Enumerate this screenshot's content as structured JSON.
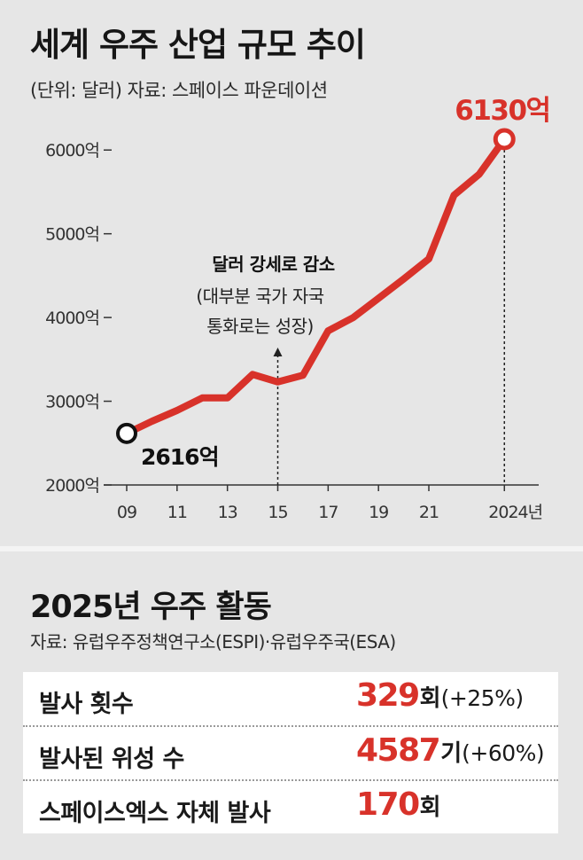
{
  "header": {
    "title": "세계 우주 산업 규모 추이",
    "subtitle": "(단위: 달러) 자료: 스페이스 파운데이션"
  },
  "chart_data": {
    "type": "line",
    "x": [
      2009,
      2010,
      2011,
      2012,
      2013,
      2014,
      2015,
      2016,
      2017,
      2018,
      2019,
      2020,
      2021,
      2022,
      2023,
      2024
    ],
    "values": [
      2616,
      2760,
      2890,
      3040,
      3040,
      3320,
      3230,
      3310,
      3840,
      4000,
      4230,
      4460,
      4700,
      5460,
      5710,
      6130
    ],
    "ylim": [
      2000,
      6500
    ],
    "xlim": [
      2009,
      2024.8
    ],
    "yticks": [
      2000,
      3000,
      4000,
      5000,
      6000
    ],
    "ytick_labels": [
      "2000억",
      "3000억",
      "4000억",
      "5000억",
      "6000억"
    ],
    "xticks": [
      2009,
      2011,
      2013,
      2015,
      2017,
      2019,
      2021,
      2024
    ],
    "xtick_labels": [
      "09",
      "11",
      "13",
      "15",
      "17",
      "19",
      "21",
      "2024년"
    ],
    "line_color": "#d8322a",
    "start_label": "2616억",
    "end_label": "6130억",
    "annotation": {
      "year": 2015,
      "title": "달러 강세로 감소",
      "lines": [
        "(대부분 국가 자국",
        "통화로는 성장)"
      ]
    }
  },
  "activity": {
    "title": "2025년 우주 활동",
    "source": "자료: 유럽우주정책연구소(ESPI)·유럽우주국(ESA)",
    "rows": [
      {
        "label": "발사 횟수",
        "value": "329",
        "unit": "회",
        "change": "(+25%)"
      },
      {
        "label": "발사된 위성 수",
        "value": "4587",
        "unit": "기",
        "change": "(+60%)"
      },
      {
        "label": "스페이스엑스 자체 발사",
        "value": "170",
        "unit": "회",
        "change": ""
      }
    ]
  }
}
